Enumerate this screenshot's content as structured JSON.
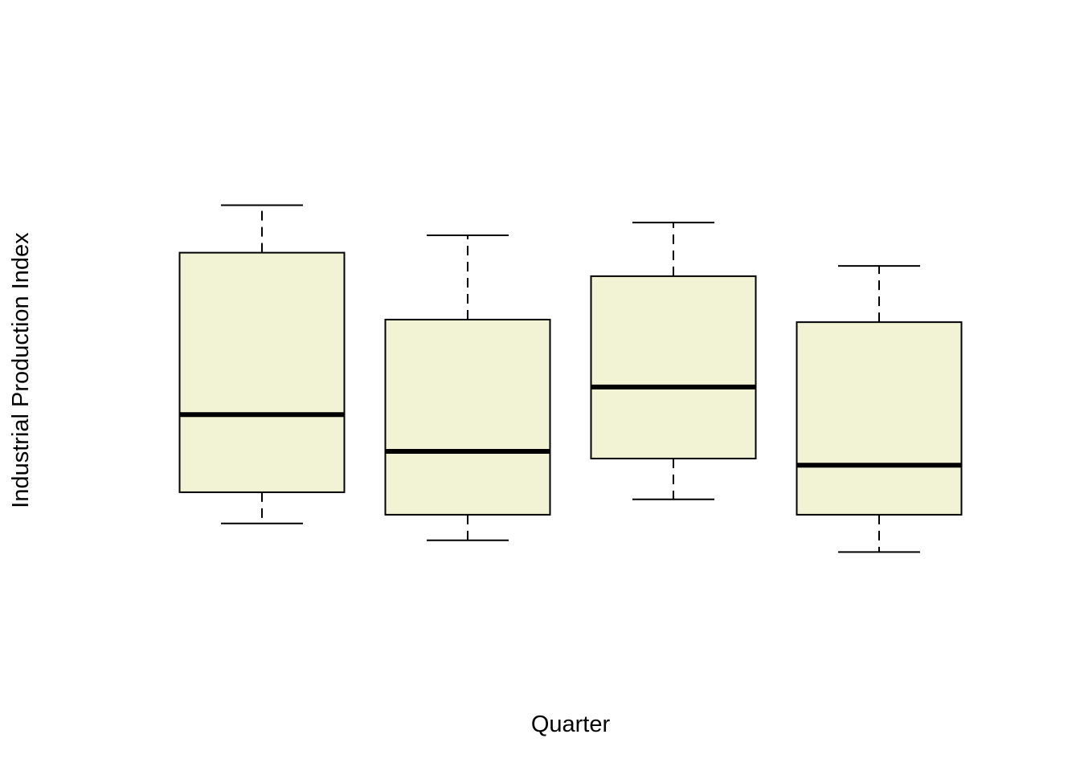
{
  "chart_data": {
    "type": "boxplot",
    "title": "",
    "xlabel": "Quarter",
    "ylabel": "Industrial Production Index",
    "ylim": [
      0,
      100
    ],
    "axes_drawn": false,
    "colors": {
      "box_fill": "#f2f2d5",
      "stroke": "#000000"
    },
    "boxes": [
      {
        "whisker_low": 18.6,
        "q1": 24.7,
        "median": 39.9,
        "q3": 71.6,
        "whisker_high": 80.9
      },
      {
        "whisker_low": 15.3,
        "q1": 20.3,
        "median": 32.7,
        "q3": 58.5,
        "whisker_high": 75.0
      },
      {
        "whisker_low": 23.3,
        "q1": 31.3,
        "median": 45.3,
        "q3": 67.0,
        "whisker_high": 77.5
      },
      {
        "whisker_low": 13.0,
        "q1": 20.3,
        "median": 30.0,
        "q3": 58.0,
        "whisker_high": 69.0
      }
    ]
  }
}
